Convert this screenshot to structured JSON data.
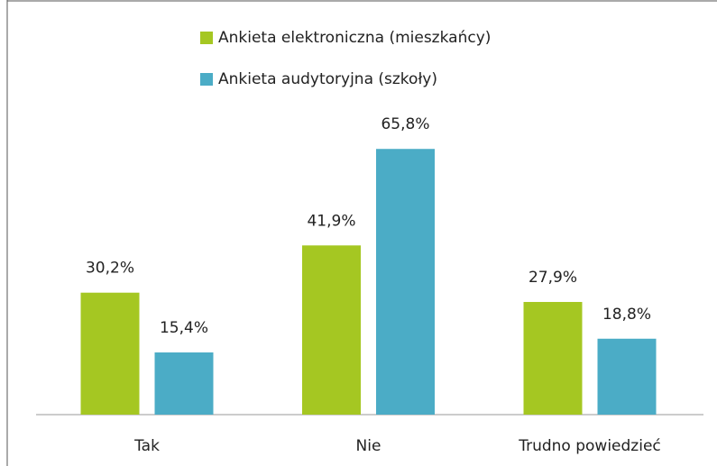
{
  "chart_data": {
    "type": "bar",
    "categories": [
      "Tak",
      "Nie",
      "Trudno powiedzieć"
    ],
    "series": [
      {
        "name": "Ankieta elektroniczna (mieszkańcy)",
        "color": "#a5c722",
        "values": [
          30.2,
          41.9,
          27.9
        ],
        "value_labels": [
          "30,2%",
          "41,9%",
          "27,9%"
        ]
      },
      {
        "name": "Ankieta audytoryjna (szkoły)",
        "color": "#4bacc6",
        "values": [
          15.4,
          65.8,
          18.8
        ],
        "value_labels": [
          "15,4%",
          "65,8%",
          "18,8%"
        ]
      }
    ]
  }
}
